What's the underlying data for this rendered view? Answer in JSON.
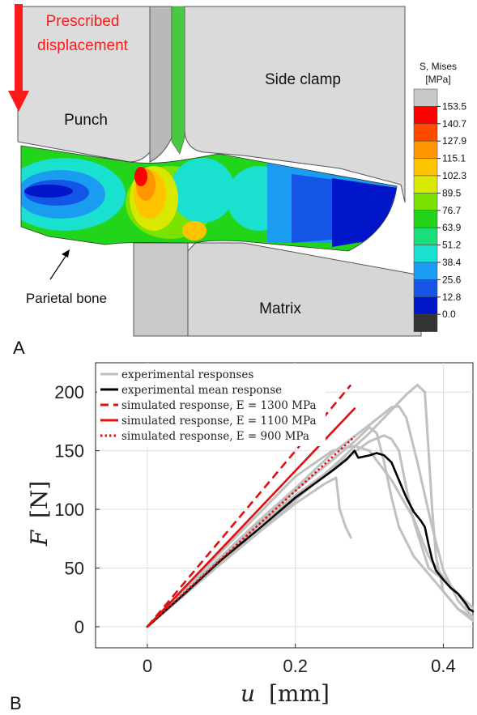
{
  "panel_a": {
    "panel_label": "A",
    "load_label_line1": "Prescribed",
    "load_label_line2": "displacement",
    "punch_label": "Punch",
    "side_clamp_label": "Side clamp",
    "matrix_label": "Matrix",
    "bone_label": "Parietal bone",
    "legend_title_line1": "S, Mises",
    "legend_title_line2": "[MPa]",
    "legend_levels": [
      "153.5",
      "140.7",
      "127.9",
      "115.1",
      "102.3",
      "89.5",
      "76.7",
      "63.9",
      "51.2",
      "38.4",
      "25.6",
      "12.8",
      "0.0"
    ],
    "legend_colors": [
      "#c8c8c8",
      "#ff0000",
      "#ff4a00",
      "#ff9500",
      "#ffc400",
      "#d8e800",
      "#7ae200",
      "#22d41a",
      "#19de7a",
      "#1ae0d0",
      "#1a9cf0",
      "#1455e6",
      "#0016c8",
      "#333333"
    ],
    "colors": {
      "load_arrow": "#ff1a1a",
      "load_text": "#ff1a1a",
      "tool": "#dcdcdc"
    }
  },
  "panel_b": {
    "panel_label": "B",
    "x_axis_symbol": "u",
    "x_axis_unit": "[mm]",
    "y_axis_symbol": "F",
    "y_axis_unit": "[N]"
  },
  "chart_data": {
    "type": "line",
    "xlim": [
      -0.07,
      0.44
    ],
    "ylim": [
      -18,
      225
    ],
    "x_ticks": [
      0,
      0.2,
      0.4
    ],
    "x_tick_labels": [
      "0",
      "0.2",
      "0.4"
    ],
    "y_ticks": [
      0,
      50,
      100,
      150,
      200
    ],
    "y_tick_labels": [
      "0",
      "50",
      "100",
      "150",
      "200"
    ],
    "grid": true,
    "legend_position": "top-left",
    "series": [
      {
        "name": "experimental responses",
        "color": "#c0c0c0",
        "style": "solid",
        "legend": true,
        "points": [
          [
            0,
            0
          ],
          [
            0.05,
            28
          ],
          [
            0.1,
            55
          ],
          [
            0.15,
            80
          ],
          [
            0.2,
            105
          ],
          [
            0.24,
            122
          ],
          [
            0.255,
            127
          ],
          [
            0.26,
            100
          ],
          [
            0.268,
            85
          ],
          [
            0.275,
            76
          ]
        ]
      },
      {
        "name": "",
        "color": "#c0c0c0",
        "style": "solid",
        "legend": false,
        "points": [
          [
            0,
            0
          ],
          [
            0.05,
            32
          ],
          [
            0.1,
            64
          ],
          [
            0.15,
            96
          ],
          [
            0.2,
            128
          ],
          [
            0.25,
            150
          ],
          [
            0.28,
            154
          ],
          [
            0.3,
            150
          ],
          [
            0.33,
            125
          ],
          [
            0.36,
            92
          ],
          [
            0.38,
            60
          ],
          [
            0.4,
            42
          ],
          [
            0.42,
            28
          ],
          [
            0.44,
            16
          ]
        ]
      },
      {
        "name": "",
        "color": "#c0c0c0",
        "style": "solid",
        "legend": false,
        "points": [
          [
            0,
            0
          ],
          [
            0.05,
            30
          ],
          [
            0.1,
            60
          ],
          [
            0.15,
            90
          ],
          [
            0.2,
            118
          ],
          [
            0.25,
            148
          ],
          [
            0.3,
            172
          ],
          [
            0.33,
            187
          ],
          [
            0.34,
            188
          ],
          [
            0.35,
            178
          ],
          [
            0.365,
            140
          ],
          [
            0.38,
            98
          ],
          [
            0.39,
            72
          ],
          [
            0.4,
            48
          ],
          [
            0.42,
            22
          ],
          [
            0.44,
            8
          ]
        ]
      },
      {
        "name": "",
        "color": "#c0c0c0",
        "style": "solid",
        "legend": false,
        "points": [
          [
            0,
            0
          ],
          [
            0.05,
            28
          ],
          [
            0.1,
            58
          ],
          [
            0.15,
            86
          ],
          [
            0.2,
            112
          ],
          [
            0.25,
            135
          ],
          [
            0.3,
            158
          ],
          [
            0.32,
            163
          ],
          [
            0.33,
            160
          ],
          [
            0.34,
            150
          ],
          [
            0.35,
            118
          ],
          [
            0.36,
            90
          ],
          [
            0.37,
            70
          ],
          [
            0.38,
            50
          ],
          [
            0.4,
            40
          ],
          [
            0.42,
            28
          ],
          [
            0.435,
            14
          ]
        ]
      },
      {
        "name": "",
        "color": "#c0c0c0",
        "style": "solid",
        "legend": false,
        "points": [
          [
            0,
            0
          ],
          [
            0.05,
            27
          ],
          [
            0.1,
            54
          ],
          [
            0.15,
            80
          ],
          [
            0.2,
            108
          ],
          [
            0.25,
            136
          ],
          [
            0.3,
            165
          ],
          [
            0.35,
            198
          ],
          [
            0.365,
            206
          ],
          [
            0.375,
            200
          ],
          [
            0.38,
            150
          ],
          [
            0.385,
            100
          ],
          [
            0.39,
            60
          ],
          [
            0.4,
            30
          ],
          [
            0.42,
            15
          ],
          [
            0.44,
            8
          ]
        ]
      },
      {
        "name": "",
        "color": "#c0c0c0",
        "style": "solid",
        "legend": false,
        "points": [
          [
            0,
            0
          ],
          [
            0.05,
            28
          ],
          [
            0.1,
            58
          ],
          [
            0.15,
            88
          ],
          [
            0.2,
            116
          ],
          [
            0.25,
            142
          ],
          [
            0.28,
            158
          ],
          [
            0.3,
            170
          ],
          [
            0.31,
            165
          ],
          [
            0.32,
            140
          ],
          [
            0.33,
            110
          ],
          [
            0.34,
            85
          ],
          [
            0.36,
            60
          ],
          [
            0.38,
            45
          ],
          [
            0.4,
            30
          ],
          [
            0.42,
            15
          ],
          [
            0.44,
            5
          ]
        ]
      },
      {
        "name": "experimental mean response",
        "color": "#000000",
        "style": "solid",
        "legend": true,
        "points": [
          [
            0,
            0
          ],
          [
            0.05,
            28
          ],
          [
            0.1,
            57
          ],
          [
            0.15,
            83
          ],
          [
            0.2,
            110
          ],
          [
            0.25,
            133
          ],
          [
            0.27,
            143
          ],
          [
            0.28,
            150
          ],
          [
            0.285,
            144
          ],
          [
            0.3,
            146
          ],
          [
            0.31,
            148
          ],
          [
            0.32,
            146
          ],
          [
            0.33,
            140
          ],
          [
            0.34,
            125
          ],
          [
            0.35,
            110
          ],
          [
            0.36,
            98
          ],
          [
            0.37,
            90
          ],
          [
            0.375,
            85
          ],
          [
            0.38,
            70
          ],
          [
            0.385,
            57
          ],
          [
            0.39,
            48
          ],
          [
            0.4,
            40
          ],
          [
            0.41,
            33
          ],
          [
            0.42,
            28
          ],
          [
            0.43,
            20
          ],
          [
            0.435,
            15
          ],
          [
            0.44,
            13
          ]
        ]
      },
      {
        "name": "simulated response, E = 1300 MPa",
        "color": "#e01010",
        "style": "dashed",
        "legend": true,
        "points": [
          [
            0,
            0
          ],
          [
            0.275,
            206
          ]
        ]
      },
      {
        "name": "simulated response, E = 1100 MPa",
        "color": "#e01010",
        "style": "solid",
        "legend": true,
        "points": [
          [
            0,
            0
          ],
          [
            0.28,
            186
          ]
        ]
      },
      {
        "name": "simulated response, E = 900 MPa",
        "color": "#e01010",
        "style": "dotted",
        "legend": true,
        "points": [
          [
            0,
            0
          ],
          [
            0.28,
            162
          ]
        ]
      }
    ]
  }
}
